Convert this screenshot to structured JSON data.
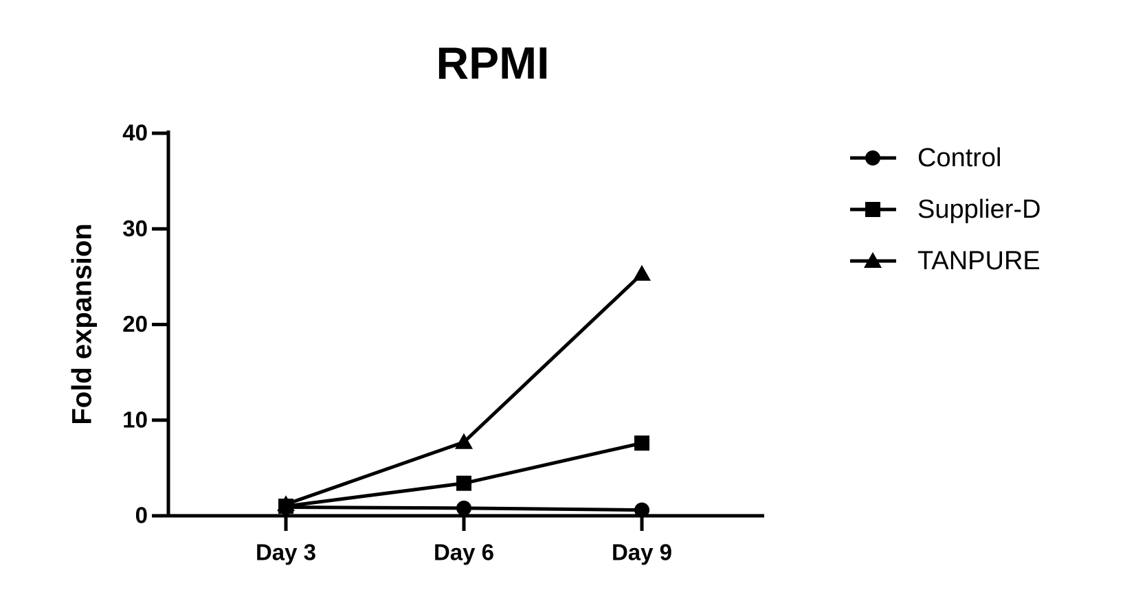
{
  "chart_data": {
    "type": "line",
    "title": "RPMI",
    "y_label": "Fold expansion",
    "categories": [
      "Day 3",
      "Day 6",
      "Day 9"
    ],
    "series": [
      {
        "name": "Control",
        "color": "#000000",
        "marker": "circle",
        "values": [
          0.9,
          0.8,
          0.6
        ]
      },
      {
        "name": "Supplier-D",
        "color": "#000000",
        "marker": "square",
        "values": [
          1,
          3.4,
          7.6
        ]
      },
      {
        "name": "TANPURE",
        "color": "#000000",
        "marker": "triangle",
        "values": [
          1.2,
          7.7,
          25.3
        ]
      }
    ],
    "ylim": [
      0,
      40
    ],
    "yticks": [
      0,
      10,
      20,
      30,
      40
    ],
    "grid": false,
    "legend": "right"
  }
}
